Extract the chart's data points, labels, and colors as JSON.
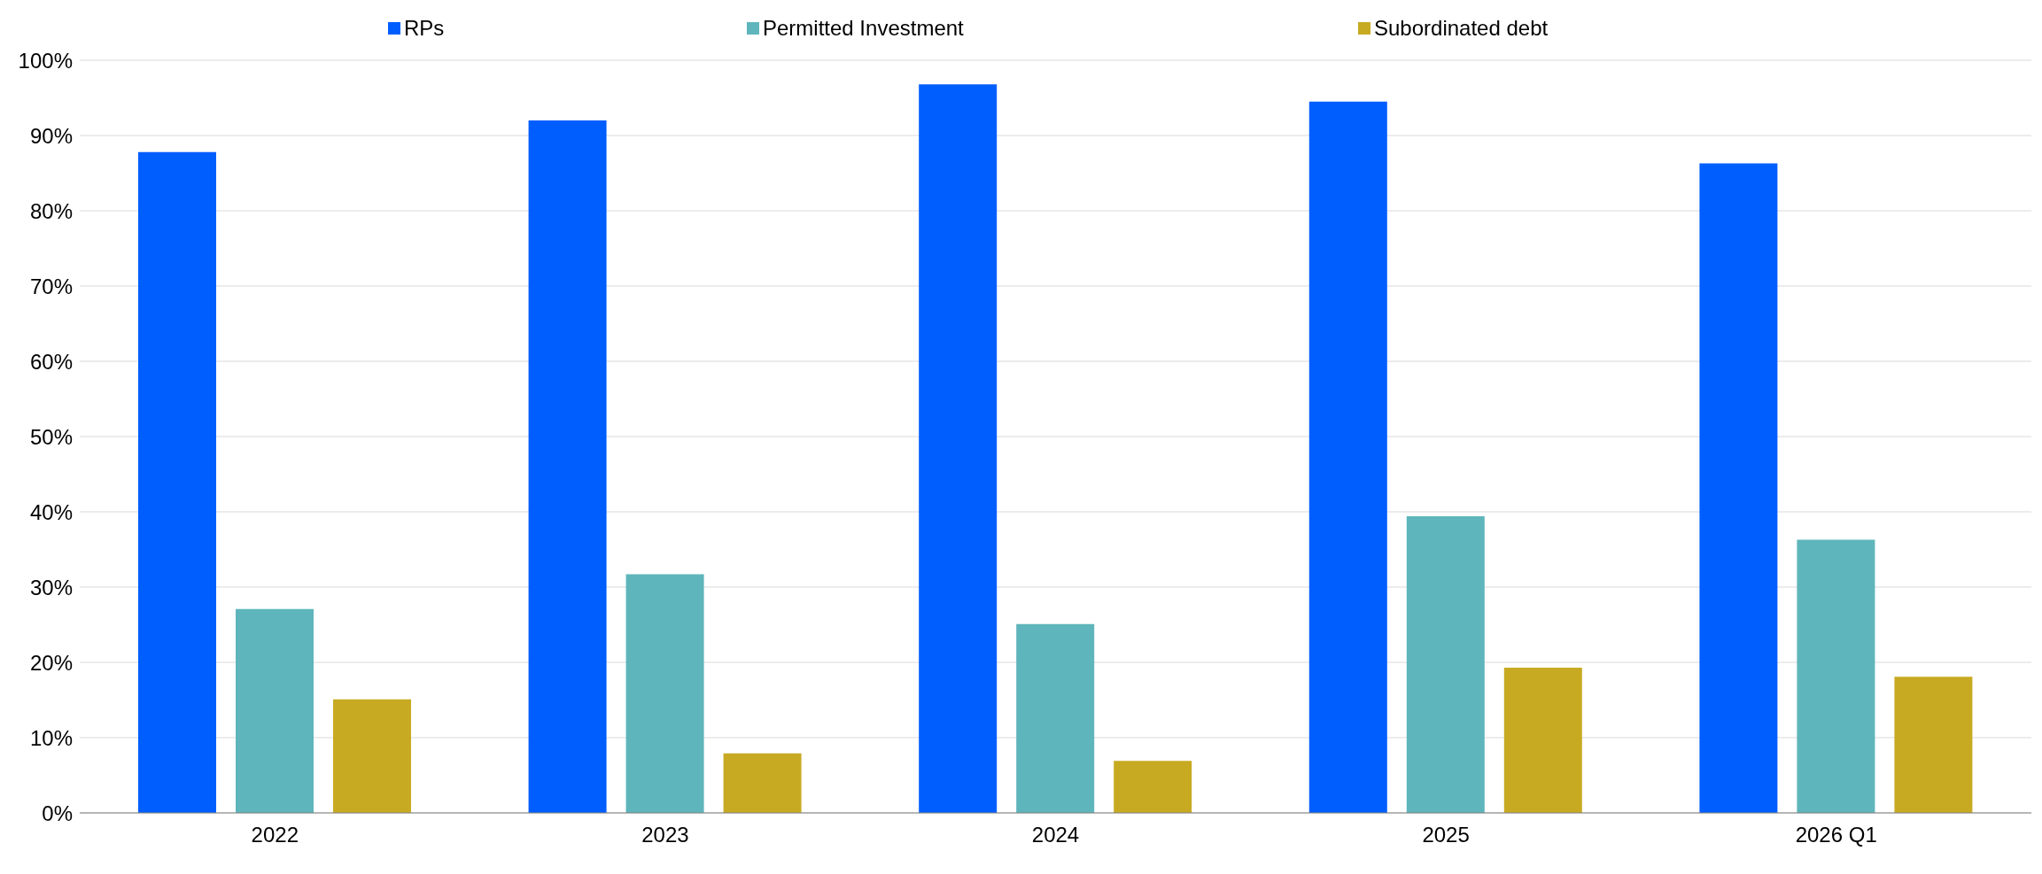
{
  "chart_data": {
    "type": "bar",
    "categories": [
      "2022",
      "2023",
      "2024",
      "2025",
      "2026 Q1"
    ],
    "series": [
      {
        "name": "RPs",
        "color": "#005eff",
        "values": [
          87.8,
          92.0,
          96.8,
          94.5,
          86.3
        ]
      },
      {
        "name": "Permitted Investment",
        "color": "#5eb5bb",
        "values": [
          27.1,
          31.7,
          25.1,
          39.4,
          36.3
        ]
      },
      {
        "name": "Subordinated debt",
        "color": "#c8aa22",
        "values": [
          15.1,
          7.9,
          6.9,
          19.3,
          18.1
        ]
      }
    ],
    "ylim": [
      0,
      100
    ],
    "yticks": [
      {
        "value": 0,
        "label": "0%"
      },
      {
        "value": 10,
        "label": "10%"
      },
      {
        "value": 20,
        "label": "20%"
      },
      {
        "value": 30,
        "label": "30%"
      },
      {
        "value": 40,
        "label": "40%"
      },
      {
        "value": 50,
        "label": "50%"
      },
      {
        "value": 60,
        "label": "60%"
      },
      {
        "value": 70,
        "label": "70%"
      },
      {
        "value": 80,
        "label": "80%"
      },
      {
        "value": 90,
        "label": "90%"
      },
      {
        "value": 100,
        "label": "100%"
      }
    ],
    "grid": "y",
    "legend": "top"
  }
}
